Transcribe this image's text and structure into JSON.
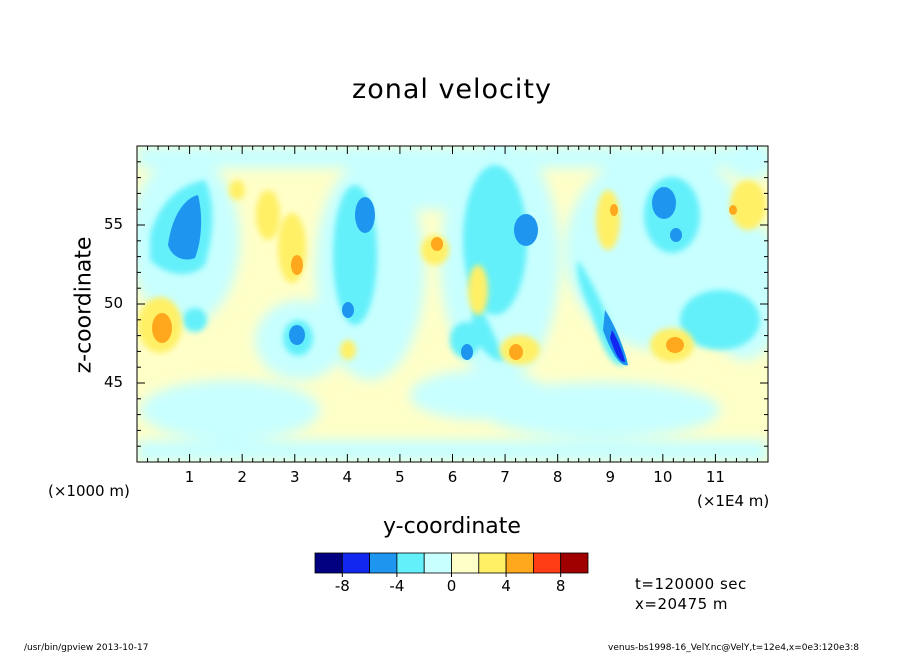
{
  "title": "zonal velocity",
  "chart_data": {
    "type": "heatmap",
    "title": "zonal velocity",
    "xlabel": "y-coordinate",
    "ylabel": "z-coordinate",
    "x_unit_label": "(×1E4 m)",
    "y_unit_label": "(×1000 m)",
    "xlim": [
      0,
      12
    ],
    "ylim": [
      40,
      60
    ],
    "x_ticks": [
      1,
      2,
      3,
      4,
      5,
      6,
      7,
      8,
      9,
      10,
      11
    ],
    "y_ticks": [
      45,
      50,
      55
    ],
    "colorbar": {
      "levels": [
        -10,
        -8,
        -6,
        -4,
        -2,
        0,
        2,
        4,
        6,
        8,
        10
      ],
      "tick_labels": [
        "-8",
        "-4",
        "0",
        "4",
        "8"
      ],
      "tick_values": [
        -8,
        -4,
        0,
        4,
        8
      ],
      "colors": [
        "#000080",
        "#1228f0",
        "#1e96f0",
        "#64f0fa",
        "#c8ffff",
        "#ffffc8",
        "#fff066",
        "#ffa81e",
        "#ff3c14",
        "#a00000"
      ]
    },
    "features": [
      {
        "y": 0.9,
        "z": 54.5,
        "sign": "negative",
        "peak": -6
      },
      {
        "y": 0.9,
        "z": 48.8,
        "sign": "positive",
        "peak": 5
      },
      {
        "y": 1.15,
        "z": 49.5,
        "sign": "negative",
        "peak": -4
      },
      {
        "y": 2.5,
        "z": 55.5,
        "sign": "positive",
        "peak": 3
      },
      {
        "y": 3.0,
        "z": 53.0,
        "sign": "positive",
        "peak": 5
      },
      {
        "y": 3.0,
        "z": 48.0,
        "sign": "negative",
        "peak": -6
      },
      {
        "y": 4.2,
        "z": 51.0,
        "sign": "negative",
        "peak": -5
      },
      {
        "y": 4.0,
        "z": 46.5,
        "sign": "positive",
        "peak": 3
      },
      {
        "y": 5.7,
        "z": 53.8,
        "sign": "positive",
        "peak": 5
      },
      {
        "y": 6.6,
        "z": 47.0,
        "sign": "negative",
        "peak": -5
      },
      {
        "y": 7.3,
        "z": 54.5,
        "sign": "negative",
        "peak": -5
      },
      {
        "y": 7.2,
        "z": 46.8,
        "sign": "positive",
        "peak": 5
      },
      {
        "y": 8.5,
        "z": 47.8,
        "sign": "negative",
        "peak": -8
      },
      {
        "y": 9.0,
        "z": 56.0,
        "sign": "positive",
        "peak": 5
      },
      {
        "y": 10.2,
        "z": 56.0,
        "sign": "negative",
        "peak": -5
      },
      {
        "y": 10.3,
        "z": 47.5,
        "sign": "positive",
        "peak": 5
      },
      {
        "y": 11.4,
        "z": 56.5,
        "sign": "positive",
        "peak": 5
      }
    ]
  },
  "time_info": "t=120000 sec",
  "position_info": "x=20475 m",
  "footer_left": "/usr/bin/gpview  2013-10-17",
  "footer_right": "venus-bs1998-16_VelY.nc@VelY,t=12e4,x=0e3:120e3:8"
}
